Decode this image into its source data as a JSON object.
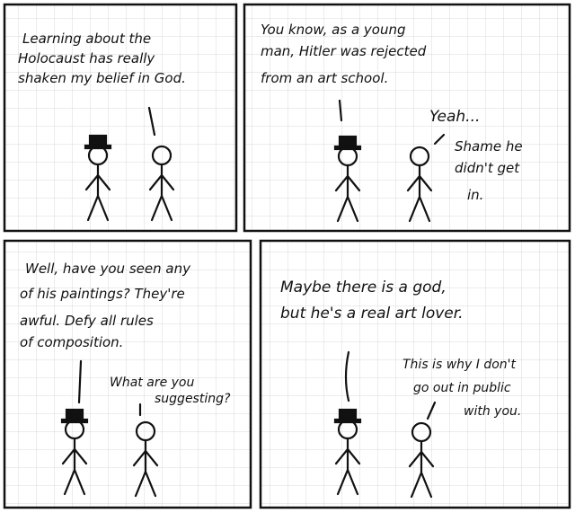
{
  "comic": {
    "panels": [
      {
        "lines": [
          "Learning about the",
          "Holocaust has really",
          "shaken my belief in God."
        ]
      },
      {
        "lines": [
          "You know, as a young",
          "man, Hitler was rejected",
          "from an art school."
        ],
        "reply": [
          "Yeah...",
          "Shame he",
          "didn't get",
          "in."
        ]
      },
      {
        "lines": [
          "Well, have you seen any",
          "of his paintings? They're",
          "awful.  Defy all rules",
          "of composition."
        ],
        "reply": [
          "What are you",
          "suggesting?"
        ]
      },
      {
        "lines": [
          "Maybe there is a god,",
          "but he's a real art lover."
        ],
        "reply": [
          "This is why I don't",
          "go out in public",
          "with you."
        ]
      }
    ],
    "colors": {
      "ink": "#111111",
      "grid": "#d8d8d8",
      "paper": "#ffffff"
    }
  }
}
